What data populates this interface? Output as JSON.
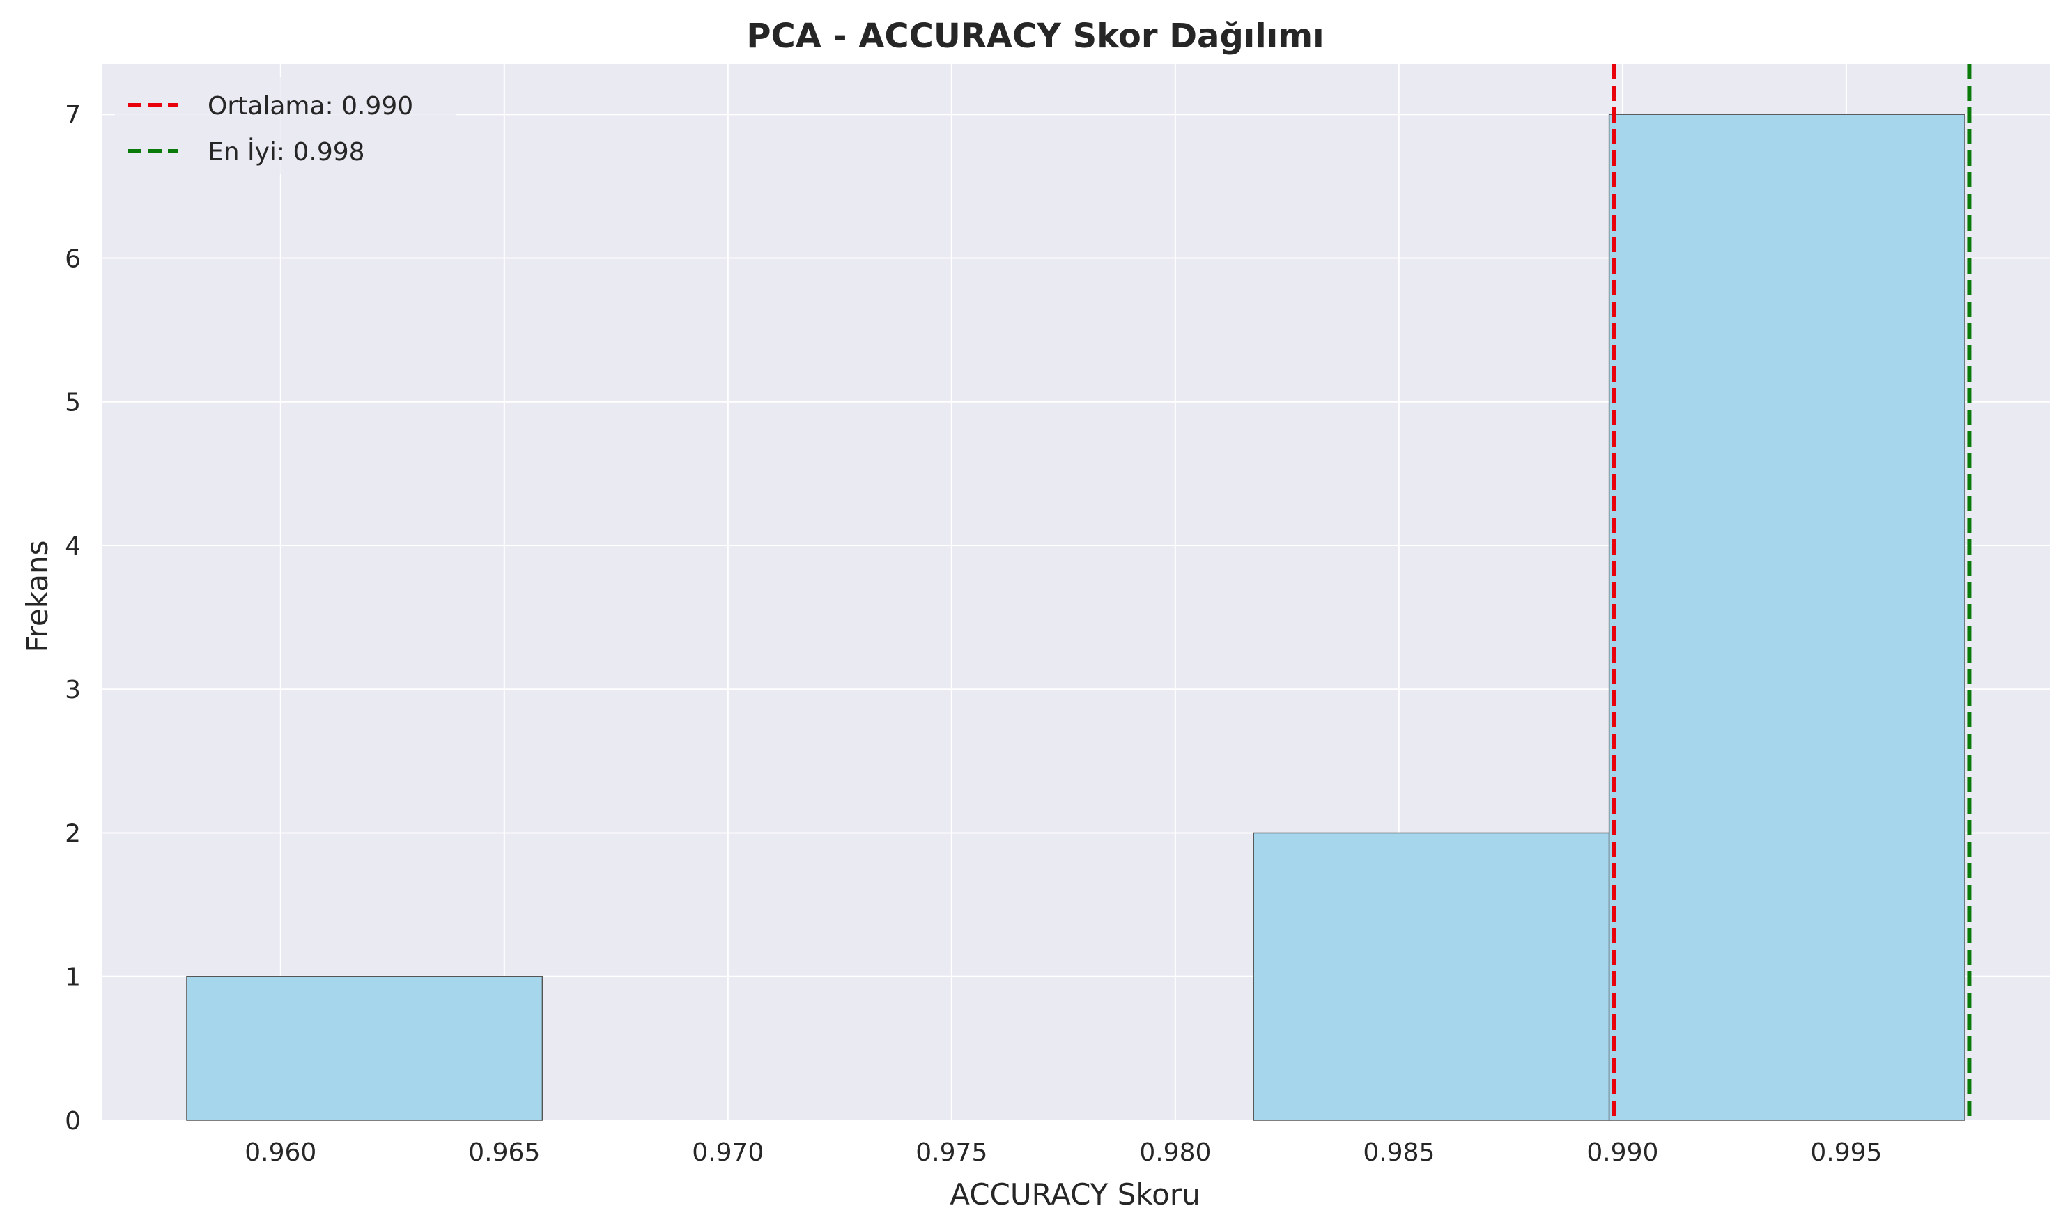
{
  "chart_data": {
    "type": "bar",
    "title": "PCA - ACCURACY Skor Dağılımı",
    "xlabel": "ACCURACY Skoru",
    "ylabel": "Frekans",
    "xlim": [
      0.956,
      0.99955
    ],
    "ylim": [
      0,
      7.35
    ],
    "grid": true,
    "legend_placement": "top-left",
    "xticks": [
      0.96,
      0.965,
      0.97,
      0.975,
      0.98,
      0.985,
      0.99,
      0.995
    ],
    "xtick_labels": [
      "0.960",
      "0.965",
      "0.970",
      "0.975",
      "0.980",
      "0.985",
      "0.990",
      "0.995"
    ],
    "yticks": [
      0,
      1,
      2,
      3,
      4,
      5,
      6,
      7
    ],
    "ytick_labels": [
      "0",
      "1",
      "2",
      "3",
      "4",
      "5",
      "6",
      "7"
    ],
    "bins": [
      {
        "start": 0.9579,
        "end": 0.96585,
        "count": 1
      },
      {
        "start": 0.96585,
        "end": 0.9738,
        "count": 0
      },
      {
        "start": 0.9738,
        "end": 0.98175,
        "count": 0
      },
      {
        "start": 0.98175,
        "end": 0.9897,
        "count": 2
      },
      {
        "start": 0.9897,
        "end": 0.99765,
        "count": 7
      }
    ],
    "vlines": [
      {
        "label": "Ortalama: 0.990",
        "x": 0.9898,
        "color": "#e8000b"
      },
      {
        "label": "En İyi: 0.998",
        "x": 0.99775,
        "color": "#0a7a0a"
      }
    ],
    "colors": {
      "bar_fill": "#a6d6ec",
      "bar_edge": "#555555",
      "plot_bg": "#eaeaf2",
      "grid": "#ffffff"
    }
  }
}
